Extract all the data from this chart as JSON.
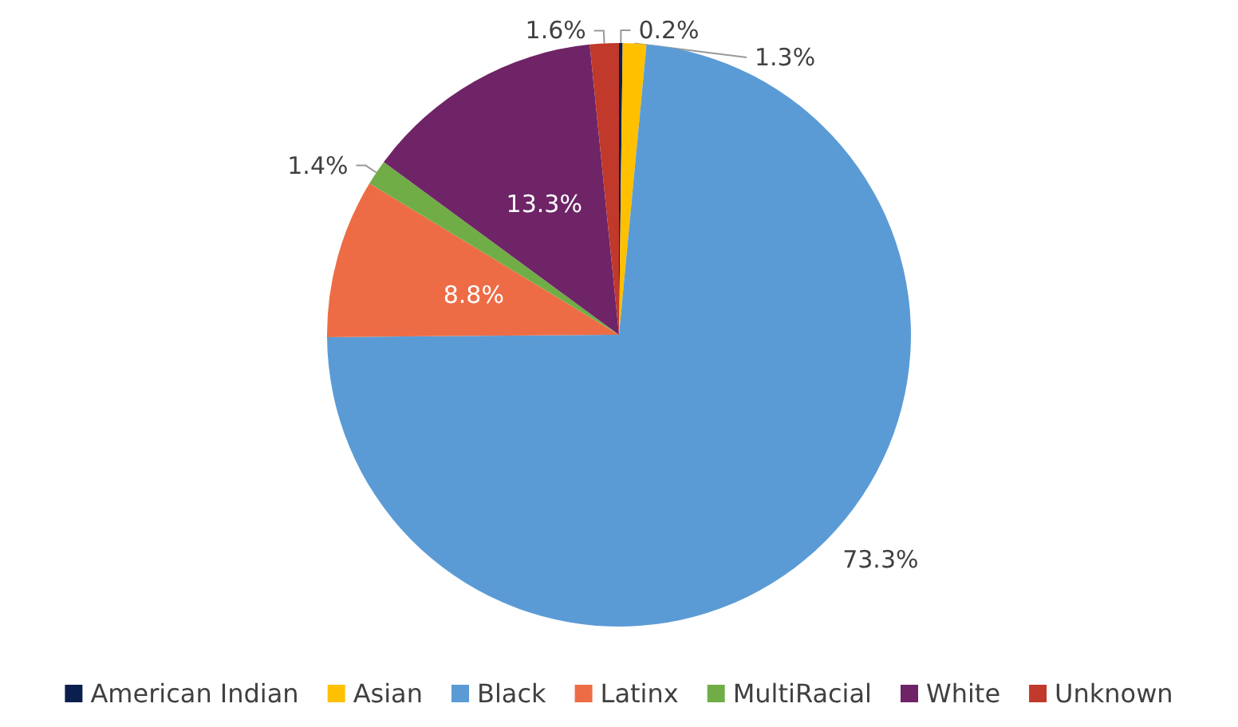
{
  "chart_data": {
    "type": "pie",
    "categories": [
      "American Indian",
      "Asian",
      "Black",
      "Latinx",
      "MultiRacial",
      "White",
      "Unknown"
    ],
    "values": [
      0.2,
      1.3,
      73.3,
      8.8,
      1.4,
      13.3,
      1.6
    ],
    "value_labels": [
      "0.2%",
      "1.3%",
      "73.3%",
      "8.8%",
      "1.4%",
      "13.3%",
      "1.6%"
    ],
    "colors": [
      "#0b1f4f",
      "#ffc000",
      "#5b9bd5",
      "#ed6c45",
      "#70ad47",
      "#6e2466",
      "#c0392b"
    ],
    "legend": "bottom"
  }
}
